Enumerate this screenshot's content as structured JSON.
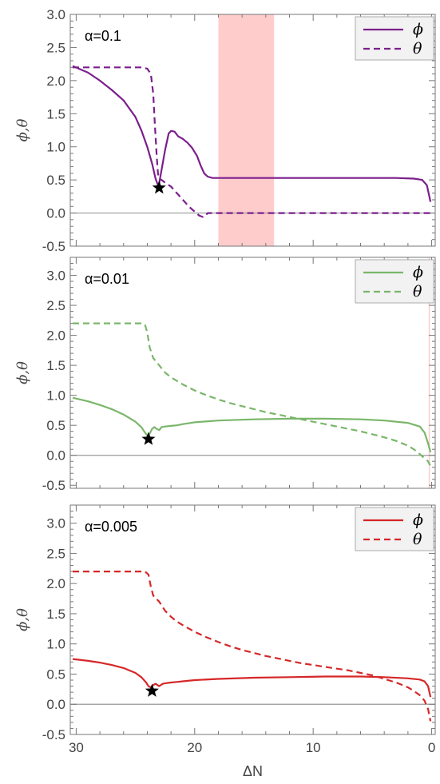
{
  "chart_data": [
    {
      "type": "line",
      "annotation": "α=0.1",
      "ylabel": "ϕ,θ",
      "xlabel": "",
      "xlim": [
        30.5,
        -0.3
      ],
      "ylim": [
        -0.5,
        3.0
      ],
      "yticks": [
        "-0.5",
        "0.0",
        "0.5",
        "1.0",
        "1.5",
        "2.0",
        "2.5",
        "3.0"
      ],
      "xticks": [],
      "legend": "top-right",
      "shaded_band": [
        18.0,
        13.3
      ],
      "shaded_color": "#ffcccc",
      "marker": {
        "shape": "star",
        "x": 23.0,
        "y": 0.38
      },
      "series": [
        {
          "name": "ϕ",
          "color": "#7b1f8c",
          "dash": false,
          "x": [
            30.3,
            29,
            28,
            27,
            26,
            25,
            24.5,
            24,
            23.6,
            23.3,
            23.1,
            23.0,
            22.8,
            22.5,
            22.2,
            22.0,
            21.7,
            21.4,
            21.0,
            20.6,
            20.2,
            19.8,
            19.5,
            19.2,
            18.9,
            18.5,
            18.0,
            17,
            15,
            12,
            9,
            6,
            3,
            1.5,
            0.8,
            0.4,
            0.1
          ],
          "y": [
            2.22,
            2.12,
            2.0,
            1.86,
            1.7,
            1.45,
            1.25,
            1.0,
            0.75,
            0.52,
            0.42,
            0.45,
            0.65,
            0.95,
            1.2,
            1.24,
            1.23,
            1.16,
            1.12,
            1.06,
            0.98,
            0.86,
            0.72,
            0.6,
            0.55,
            0.53,
            0.53,
            0.53,
            0.53,
            0.53,
            0.53,
            0.53,
            0.53,
            0.52,
            0.5,
            0.42,
            0.17
          ]
        },
        {
          "name": "θ",
          "color": "#7b1f8c",
          "dash": true,
          "x": [
            30.3,
            28,
            26,
            25,
            24.5,
            24.0,
            23.7,
            23.5,
            23.35,
            23.2,
            23.1,
            23.0,
            22.8,
            22.5,
            22.0,
            21.5,
            21.0,
            20.5,
            20.0,
            19.6,
            19.3,
            19.1,
            18.9,
            18.5,
            18.0,
            15,
            10,
            5,
            2,
            0.5,
            0.1
          ],
          "y": [
            2.2,
            2.2,
            2.2,
            2.2,
            2.2,
            2.18,
            2.1,
            1.8,
            1.3,
            0.85,
            0.6,
            0.52,
            0.5,
            0.46,
            0.4,
            0.3,
            0.2,
            0.1,
            0.02,
            -0.04,
            -0.06,
            -0.04,
            0.0,
            0.0,
            0.0,
            0.0,
            0.0,
            0.0,
            0.0,
            0.0,
            0.0
          ]
        }
      ]
    },
    {
      "type": "line",
      "annotation": "α=0.01",
      "ylabel": "ϕ,θ",
      "xlabel": "",
      "xlim": [
        30.5,
        -0.3
      ],
      "ylim": [
        -0.55,
        3.3
      ],
      "yticks": [
        "-0.5",
        "0.0",
        "0.5",
        "1.0",
        "1.5",
        "2.0",
        "2.5",
        "3.0"
      ],
      "xticks": [],
      "legend": "top-right",
      "shaded_band": [
        0.25,
        0.15
      ],
      "shaded_color": "#ffcccc",
      "marker": {
        "shape": "star",
        "x": 23.9,
        "y": 0.27
      },
      "series": [
        {
          "name": "ϕ",
          "color": "#7ab66a",
          "dash": false,
          "x": [
            30.3,
            29,
            28,
            27,
            26,
            25,
            24.5,
            24.2,
            24.0,
            23.8,
            23.6,
            23.4,
            23.2,
            23.0,
            22.8,
            22.5,
            22.0,
            21.5,
            21.0,
            20,
            18,
            15,
            12,
            9,
            6,
            4,
            2,
            1,
            0.6,
            0.3,
            0.1
          ],
          "y": [
            0.96,
            0.9,
            0.84,
            0.77,
            0.68,
            0.56,
            0.47,
            0.38,
            0.33,
            0.36,
            0.44,
            0.47,
            0.44,
            0.42,
            0.47,
            0.48,
            0.49,
            0.5,
            0.52,
            0.55,
            0.58,
            0.6,
            0.61,
            0.61,
            0.6,
            0.58,
            0.54,
            0.48,
            0.38,
            0.2,
            0.05
          ]
        },
        {
          "name": "θ",
          "color": "#7ab66a",
          "dash": true,
          "x": [
            30.3,
            28,
            26,
            25,
            24.5,
            24.2,
            24.0,
            23.8,
            23.5,
            23.0,
            22.5,
            22.0,
            21.5,
            21.0,
            20.0,
            19.0,
            18.0,
            17.0,
            16.0,
            15.0,
            14.0,
            13.0,
            12.0,
            11.0,
            10.0,
            9.0,
            8.0,
            7.0,
            6.0,
            5.0,
            4.0,
            3.0,
            2.0,
            1.5,
            1.0,
            0.6,
            0.3,
            0.1
          ],
          "y": [
            2.2,
            2.2,
            2.2,
            2.2,
            2.2,
            2.18,
            2.05,
            1.8,
            1.62,
            1.5,
            1.38,
            1.3,
            1.24,
            1.18,
            1.08,
            1.0,
            0.93,
            0.87,
            0.82,
            0.77,
            0.72,
            0.68,
            0.64,
            0.6,
            0.56,
            0.52,
            0.48,
            0.44,
            0.4,
            0.35,
            0.3,
            0.24,
            0.16,
            0.1,
            0.02,
            -0.05,
            -0.1,
            -0.18
          ]
        }
      ]
    },
    {
      "type": "line",
      "annotation": "α=0.005",
      "ylabel": "ϕ,θ",
      "xlabel": "ΔN",
      "xlim": [
        30.5,
        -0.3
      ],
      "ylim": [
        -0.5,
        3.3
      ],
      "yticks": [
        "-0.5",
        "0.0",
        "0.5",
        "1.0",
        "1.5",
        "2.0",
        "2.5",
        "3.0"
      ],
      "xticks": [
        "30",
        "20",
        "10",
        "0"
      ],
      "xtick_values": [
        30,
        20,
        10,
        0
      ],
      "legend": "top-right",
      "marker": {
        "shape": "star",
        "x": 23.6,
        "y": 0.22
      },
      "series": [
        {
          "name": "ϕ",
          "color": "#d62728",
          "dash": false,
          "x": [
            30.3,
            29,
            28,
            27,
            26,
            25,
            24.5,
            24.1,
            23.9,
            23.7,
            23.5,
            23.3,
            23.0,
            22.7,
            22.4,
            22.0,
            21.5,
            21.0,
            20,
            18,
            15,
            12,
            9,
            6,
            4,
            2,
            1,
            0.6,
            0.3,
            0.1
          ],
          "y": [
            0.75,
            0.72,
            0.69,
            0.65,
            0.6,
            0.52,
            0.45,
            0.36,
            0.3,
            0.28,
            0.32,
            0.34,
            0.3,
            0.34,
            0.35,
            0.36,
            0.37,
            0.38,
            0.4,
            0.42,
            0.44,
            0.45,
            0.46,
            0.46,
            0.45,
            0.43,
            0.41,
            0.38,
            0.3,
            0.12
          ]
        },
        {
          "name": "θ",
          "color": "#d62728",
          "dash": true,
          "x": [
            30.3,
            28,
            26,
            25,
            24.2,
            23.9,
            23.7,
            23.5,
            23.0,
            22.5,
            22.0,
            21.5,
            21.0,
            20.0,
            19.0,
            18.0,
            17.0,
            16.0,
            15.0,
            14.0,
            13.0,
            12.0,
            11.0,
            10.0,
            9.0,
            8.0,
            7.0,
            6.0,
            5.0,
            4.0,
            3.0,
            2.0,
            1.5,
            1.0,
            0.6,
            0.3,
            0.1
          ],
          "y": [
            2.2,
            2.2,
            2.2,
            2.2,
            2.2,
            2.15,
            1.95,
            1.8,
            1.7,
            1.55,
            1.45,
            1.37,
            1.31,
            1.2,
            1.11,
            1.03,
            0.96,
            0.9,
            0.85,
            0.8,
            0.76,
            0.72,
            0.68,
            0.65,
            0.62,
            0.59,
            0.56,
            0.52,
            0.48,
            0.42,
            0.36,
            0.28,
            0.22,
            0.15,
            0.06,
            -0.08,
            -0.28
          ]
        }
      ]
    }
  ]
}
